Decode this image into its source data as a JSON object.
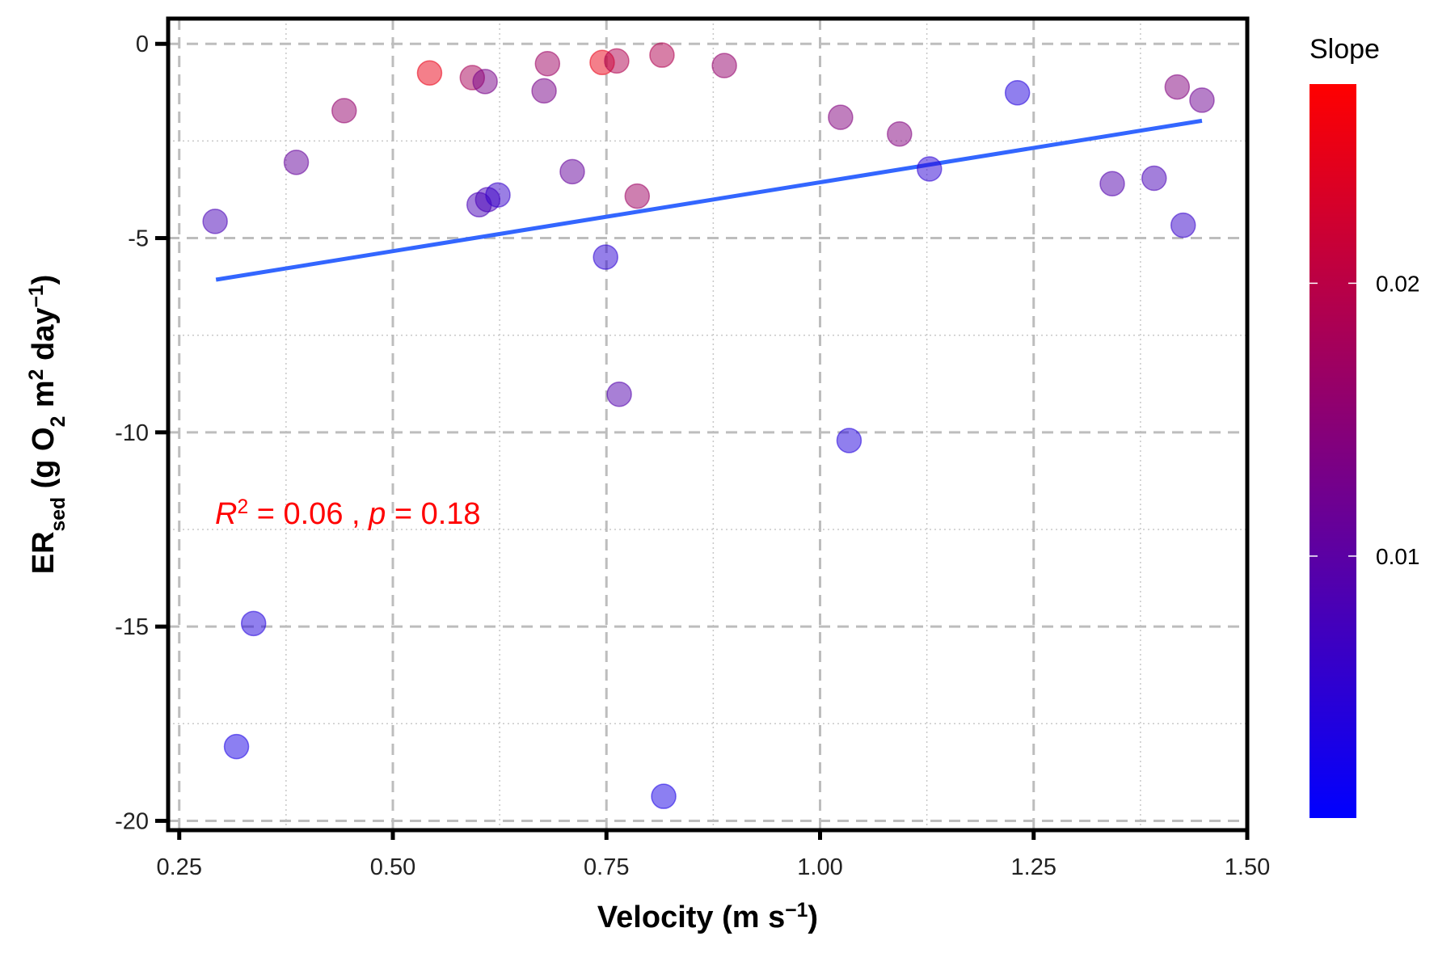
{
  "chart_data": {
    "type": "scatter",
    "x": [
      0.292,
      0.337,
      0.317,
      0.387,
      0.443,
      0.543,
      0.593,
      0.608,
      0.601,
      0.611,
      0.623,
      0.677,
      0.681,
      0.71,
      0.745,
      0.762,
      0.749,
      0.765,
      0.786,
      0.815,
      0.817,
      0.888,
      1.024,
      1.034,
      1.093,
      1.128,
      1.231,
      1.342,
      1.391,
      1.418,
      1.425,
      1.447
    ],
    "y": [
      -4.57,
      -14.92,
      -18.09,
      -3.05,
      -1.72,
      -0.75,
      -0.87,
      -0.97,
      -4.14,
      -4.01,
      -3.89,
      -1.21,
      -0.51,
      -3.29,
      -0.48,
      -0.44,
      -5.49,
      -9.02,
      -3.92,
      -0.29,
      -19.37,
      -0.56,
      -1.89,
      -10.21,
      -2.32,
      -3.22,
      -1.26,
      -3.6,
      -3.46,
      -1.11,
      -4.67,
      -1.45
    ],
    "color_values": [
      0.008,
      0.004,
      0.003,
      0.011,
      0.016,
      0.025,
      0.018,
      0.013,
      0.008,
      0.008,
      0.006,
      0.013,
      0.017,
      0.011,
      0.025,
      0.019,
      0.005,
      0.009,
      0.017,
      0.019,
      0.003,
      0.016,
      0.014,
      0.004,
      0.014,
      0.005,
      0.004,
      0.009,
      0.008,
      0.014,
      0.006,
      0.012
    ],
    "colorbar": {
      "title": "Slope",
      "colors": [
        "#0000ff",
        "#ff0000"
      ],
      "clim": [
        0.0004,
        0.0273
      ],
      "ticks": [
        0.01,
        0.02
      ]
    },
    "fit": {
      "x": [
        0.293,
        1.447
      ],
      "y": [
        -6.07,
        -1.98
      ],
      "color": "#3366ff"
    },
    "annotation": {
      "color": "#ff0000",
      "parts": [
        {
          "text": "R",
          "italic": true
        },
        {
          "text": "2",
          "sup": true
        },
        {
          "text": " = 0.06 , "
        },
        {
          "text": "p",
          "italic": true
        },
        {
          "text": " = 0.18"
        }
      ]
    },
    "xlabel": [
      {
        "text": "Velocity (m s"
      },
      {
        "text": "−1",
        "sup": true
      },
      {
        "text": ")"
      }
    ],
    "ylabel": [
      {
        "text": "ER"
      },
      {
        "text": "sed",
        "sub": true
      },
      {
        "text": " (g O"
      },
      {
        "text": "2",
        "sub": true
      },
      {
        "text": " m"
      },
      {
        "text": "2",
        "sup": true
      },
      {
        "text": " day"
      },
      {
        "text": "−1",
        "sup": true
      },
      {
        "text": ")"
      }
    ],
    "xlim": [
      0.237,
      1.5
    ],
    "ylim": [
      -20.24,
      0.65
    ],
    "xticks": [
      0.25,
      {
        "value": 0.5,
        "label": "0.50"
      },
      0.75,
      {
        "value": 1.0,
        "label": "1.00"
      },
      1.25,
      {
        "value": 1.5,
        "label": "1.50"
      }
    ],
    "yticks": [
      0,
      -5,
      -10,
      -15,
      -20
    ],
    "x_minor_grid": [
      0.375,
      0.625,
      0.875,
      1.125,
      1.375
    ],
    "y_minor_grid": [
      -2.5,
      -7.5,
      -12.5,
      -17.5
    ],
    "grid": true
  }
}
